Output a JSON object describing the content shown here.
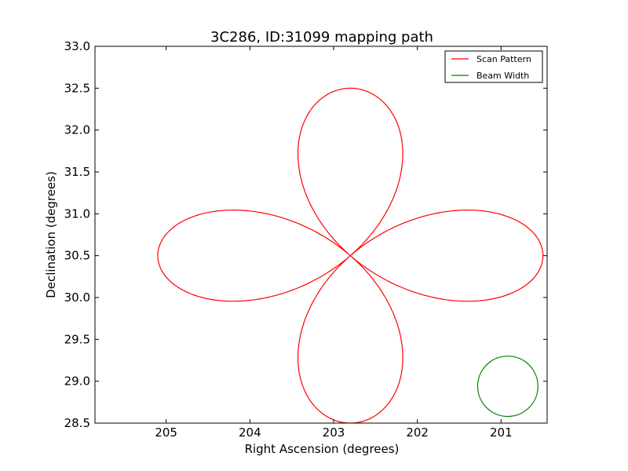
{
  "chart_data": {
    "type": "line",
    "title": "3C286, ID:31099 mapping path",
    "xlabel": "Right Ascension (degrees)",
    "ylabel": "Declination (degrees)",
    "xlim": [
      205.85,
      200.45
    ],
    "ylim": [
      28.5,
      33.0
    ],
    "x_ticks": [
      205,
      204,
      203,
      202,
      201
    ],
    "x_tick_labels": [
      "205",
      "204",
      "203",
      "202",
      "201"
    ],
    "y_ticks": [
      28.5,
      29.0,
      29.5,
      30.0,
      30.5,
      31.0,
      31.5,
      32.0,
      32.5,
      33.0
    ],
    "y_tick_labels": [
      "28.5",
      "29.0",
      "29.5",
      "30.0",
      "30.5",
      "31.0",
      "31.5",
      "32.0",
      "32.5",
      "33.0"
    ],
    "grid": false,
    "legend_position": "top-right",
    "series": [
      {
        "name": "Scan Pattern",
        "color": "#ff0000",
        "x": [
          202.8,
          203.01,
          203.25,
          203.43,
          203.5,
          203.42,
          203.19,
          202.8,
          202.45,
          202.22,
          202.17,
          202.25,
          202.42,
          202.6,
          202.8,
          203.11,
          203.54,
          204.2,
          204.86,
          205.09,
          205.04,
          204.86,
          204.2,
          203.6,
          203.13,
          202.8,
          203.05,
          203.31,
          203.45,
          203.42,
          203.16,
          202.8,
          202.44,
          202.2,
          202.18,
          202.3,
          202.55,
          202.8,
          203.1,
          203.45,
          203.7,
          203.95,
          204.2,
          204.84,
          205.03,
          205.1
        ],
        "y": [
          30.5,
          30.98,
          31.4,
          31.74,
          32.0,
          32.28,
          32.45,
          32.5,
          32.42,
          32.16,
          31.7,
          31.35,
          31.03,
          30.75,
          30.5,
          30.79,
          30.96,
          31.05,
          30.98,
          30.75,
          30.5,
          30.24,
          29.96,
          30.06,
          30.26,
          30.5,
          30.06,
          29.6,
          29.3,
          29.0,
          28.6,
          28.5,
          28.64,
          29.0,
          29.3,
          29.64,
          30.05,
          30.5,
          30.76,
          30.98,
          30.78,
          30.5,
          30.47,
          30.25,
          30.0,
          30.5
        ]
      },
      {
        "name": "Beam Width",
        "color": "#008000",
        "circle_center": [
          200.92,
          28.94
        ],
        "circle_radius_dec": 0.36
      }
    ],
    "clover": {
      "center": [
        202.8,
        30.5
      ],
      "lobe_reach_ra": 2.3,
      "lobe_reach_dec": 2.0
    }
  }
}
